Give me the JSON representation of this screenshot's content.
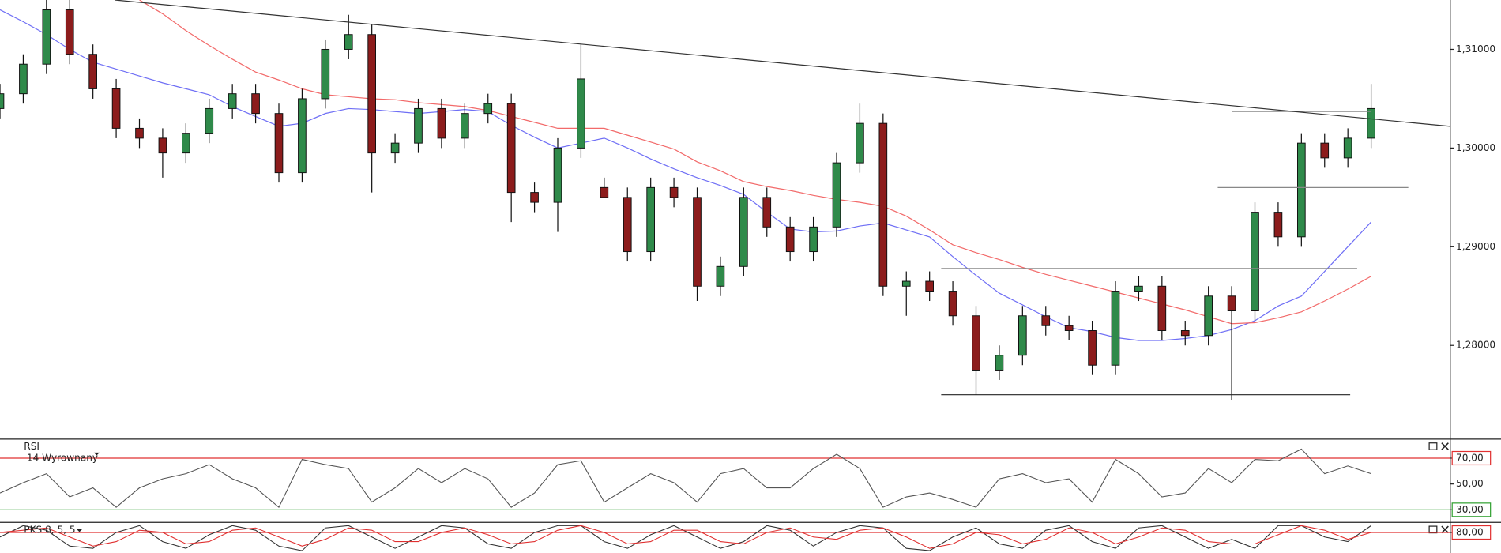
{
  "chart_data": [
    {
      "type": "candlestick",
      "xlim": [
        0,
        62.2
      ],
      "ylim": [
        1.2706,
        1.315
      ],
      "yticks": [
        {
          "value": 1.28,
          "label": "1,28000"
        },
        {
          "value": 1.29,
          "label": "1,29000"
        },
        {
          "value": 1.3,
          "label": "1,30000"
        },
        {
          "value": 1.31,
          "label": "1,31000"
        }
      ],
      "up_color": "#2f8a4a",
      "down_color": "#8c1c1c",
      "open": [
        1.304,
        1.3055,
        1.3085,
        1.314,
        1.3095,
        1.306,
        1.302,
        1.301,
        1.2995,
        1.3015,
        1.304,
        1.3055,
        1.3035,
        1.2975,
        1.305,
        1.31,
        1.3115,
        1.2995,
        1.3005,
        1.304,
        1.301,
        1.3035,
        1.3045,
        1.2955,
        1.2945,
        1.3,
        1.296,
        1.295,
        1.2895,
        1.296,
        1.295,
        1.286,
        1.288,
        1.295,
        1.292,
        1.2895,
        1.292,
        1.2985,
        1.3025,
        1.286,
        1.2865,
        1.2855,
        1.283,
        1.2775,
        1.279,
        1.283,
        1.282,
        1.2815,
        1.278,
        1.2855,
        1.286,
        1.2815,
        1.281,
        1.285,
        1.2835,
        1.2935,
        1.291,
        1.3005,
        1.299,
        1.301
      ],
      "high": [
        1.3065,
        1.3095,
        1.315,
        1.315,
        1.3105,
        1.307,
        1.303,
        1.302,
        1.3025,
        1.305,
        1.3065,
        1.3065,
        1.3045,
        1.306,
        1.311,
        1.3135,
        1.3125,
        1.3015,
        1.305,
        1.305,
        1.3045,
        1.3055,
        1.3055,
        1.2965,
        1.301,
        1.3105,
        1.297,
        1.296,
        1.297,
        1.297,
        1.296,
        1.289,
        1.296,
        1.296,
        1.293,
        1.293,
        1.2995,
        1.3045,
        1.3035,
        1.2875,
        1.2875,
        1.2865,
        1.284,
        1.28,
        1.284,
        1.284,
        1.283,
        1.2825,
        1.2865,
        1.287,
        1.287,
        1.2825,
        1.286,
        1.286,
        1.2945,
        1.2945,
        1.3015,
        1.3015,
        1.302,
        1.3065
      ],
      "low": [
        1.303,
        1.3045,
        1.3075,
        1.3085,
        1.305,
        1.301,
        1.3,
        1.297,
        1.2985,
        1.3005,
        1.303,
        1.3025,
        1.2965,
        1.2965,
        1.304,
        1.309,
        1.2955,
        1.2985,
        1.2995,
        1.3,
        1.3,
        1.3025,
        1.2925,
        1.2935,
        1.2915,
        1.299,
        1.295,
        1.2885,
        1.2885,
        1.294,
        1.2845,
        1.285,
        1.287,
        1.291,
        1.2885,
        1.2885,
        1.291,
        1.2975,
        1.285,
        1.283,
        1.2845,
        1.282,
        1.275,
        1.2765,
        1.278,
        1.281,
        1.2805,
        1.277,
        1.277,
        1.2845,
        1.2805,
        1.28,
        1.28,
        1.2745,
        1.2825,
        1.29,
        1.29,
        1.298,
        1.298,
        1.3
      ],
      "close": [
        1.3055,
        1.3085,
        1.314,
        1.3095,
        1.306,
        1.302,
        1.301,
        1.2995,
        1.3015,
        1.304,
        1.3055,
        1.3035,
        1.2975,
        1.305,
        1.31,
        1.3115,
        1.2995,
        1.3005,
        1.304,
        1.301,
        1.3035,
        1.3045,
        1.2955,
        1.2945,
        1.3,
        1.307,
        1.295,
        1.2895,
        1.296,
        1.295,
        1.286,
        1.288,
        1.295,
        1.292,
        1.2895,
        1.292,
        1.2985,
        1.3025,
        1.286,
        1.2865,
        1.2855,
        1.283,
        1.2775,
        1.279,
        1.283,
        1.282,
        1.2815,
        1.278,
        1.2855,
        1.286,
        1.2815,
        1.281,
        1.285,
        1.2835,
        1.2935,
        1.291,
        1.3005,
        1.299,
        1.301,
        1.304
      ],
      "series": [
        {
          "color": "#6f6ff5",
          "values": [
            1.314,
            1.3128,
            1.3115,
            1.31,
            1.3087,
            1.308,
            1.3073,
            1.3066,
            1.306,
            1.3054,
            1.3042,
            1.3032,
            1.3022,
            1.3025,
            1.3035,
            1.304,
            1.3039,
            1.3037,
            1.3035,
            1.3037,
            1.3039,
            1.3037,
            1.3023,
            1.3011,
            1.3,
            1.3005,
            1.301,
            1.3,
            1.2989,
            1.2979,
            1.297,
            1.2962,
            1.2953,
            1.2935,
            1.2918,
            1.2915,
            1.2916,
            1.2921,
            1.2924,
            1.2917,
            1.291,
            1.289,
            1.2871,
            1.2853,
            1.2841,
            1.2829,
            1.2818,
            1.2814,
            1.2808,
            1.2805,
            1.2805,
            1.2807,
            1.281,
            1.2816,
            1.2825,
            1.284,
            1.285,
            1.2875,
            1.29,
            1.2925
          ]
        },
        {
          "color": "#f26a6a",
          "values": [
            null,
            null,
            null,
            null,
            null,
            null,
            1.315,
            1.3136,
            1.3119,
            1.3104,
            1.309,
            1.3077,
            1.3069,
            1.306,
            1.3054,
            1.3052,
            1.305,
            1.3049,
            1.3046,
            1.3044,
            1.3042,
            1.3038,
            1.3032,
            1.3026,
            1.302,
            1.302,
            1.302,
            1.3013,
            1.3006,
            1.2999,
            1.2986,
            1.2977,
            1.2966,
            1.2961,
            1.2957,
            1.2952,
            1.2948,
            1.2945,
            1.2941,
            1.2931,
            1.2917,
            1.2902,
            1.2894,
            1.2887,
            1.2879,
            1.2872,
            1.2866,
            1.286,
            1.2854,
            1.2848,
            1.2842,
            1.2836,
            1.2829,
            1.2822,
            1.2823,
            1.2828,
            1.2834,
            1.2845,
            1.2857,
            1.287
          ]
        }
      ],
      "trendline": {
        "color": "#333333",
        "x": [
          4.94,
          62.4
        ],
        "y": [
          1.315,
          1.3022
        ]
      },
      "levels": [
        {
          "value": 1.275,
          "x": [
            40.5,
            58.1
          ],
          "color": "#222222"
        },
        {
          "value": 1.2878,
          "x": [
            40.5,
            58.4
          ],
          "color": "#888888"
        },
        {
          "value": 1.296,
          "x": [
            52.4,
            60.6
          ],
          "color": "#888888"
        },
        {
          "value": 1.3037,
          "x": [
            53,
            59
          ],
          "color": "#888888"
        }
      ]
    },
    {
      "type": "line",
      "title": "RSI",
      "subtitle": "14 Wyrownany",
      "xlim": [
        0,
        62.2
      ],
      "ylim": [
        21,
        84
      ],
      "yticks": [
        {
          "value": 70,
          "label": "70,00"
        },
        {
          "value": 50,
          "label": "50,00"
        },
        {
          "value": 30,
          "label": "30,00"
        }
      ],
      "bands": [
        {
          "value": 70,
          "color": "#e03030"
        },
        {
          "value": 30,
          "color": "#30a030"
        }
      ],
      "color": "#555555",
      "values": [
        43,
        51,
        58,
        40,
        47,
        32,
        47,
        54,
        58,
        65,
        54,
        47,
        32,
        69,
        65,
        62,
        36,
        47,
        62,
        51,
        62,
        54,
        32,
        43,
        65,
        68,
        36,
        47,
        58,
        51,
        36,
        58,
        62,
        47,
        47,
        62,
        73,
        62,
        32,
        40,
        43,
        38,
        32,
        54,
        58,
        51,
        54,
        36,
        69,
        58,
        40,
        43,
        62,
        51,
        69,
        68,
        77,
        58,
        64,
        58
      ]
    },
    {
      "type": "line",
      "title": "PKS 8, 5, 5",
      "xlim": [
        0,
        62.2
      ],
      "ylim": [
        35,
        100
      ],
      "yticks": [
        {
          "value": 80,
          "label": "80,00"
        }
      ],
      "bands": [
        {
          "value": 80,
          "color": "#e03030"
        }
      ],
      "series": [
        {
          "color": "#333333",
          "values": [
            70,
            95,
            85,
            50,
            45,
            80,
            95,
            60,
            45,
            75,
            95,
            85,
            50,
            40,
            90,
            95,
            70,
            45,
            70,
            95,
            90,
            55,
            45,
            80,
            95,
            95,
            60,
            45,
            75,
            95,
            70,
            45,
            60,
            95,
            85,
            50,
            80,
            95,
            90,
            45,
            40,
            70,
            90,
            55,
            45,
            85,
            95,
            60,
            45,
            90,
            95,
            70,
            45,
            65,
            45,
            95,
            95,
            70,
            60,
            95
          ]
        },
        {
          "color": "#e03030",
          "values": [
            80,
            85,
            90,
            70,
            50,
            60,
            85,
            80,
            55,
            60,
            85,
            90,
            70,
            50,
            65,
            90,
            85,
            60,
            60,
            80,
            90,
            75,
            55,
            60,
            85,
            95,
            80,
            55,
            60,
            85,
            85,
            60,
            55,
            80,
            90,
            70,
            65,
            85,
            90,
            70,
            45,
            55,
            80,
            75,
            55,
            65,
            90,
            80,
            55,
            70,
            90,
            85,
            60,
            55,
            55,
            75,
            95,
            85,
            65,
            80
          ]
        }
      ]
    }
  ]
}
